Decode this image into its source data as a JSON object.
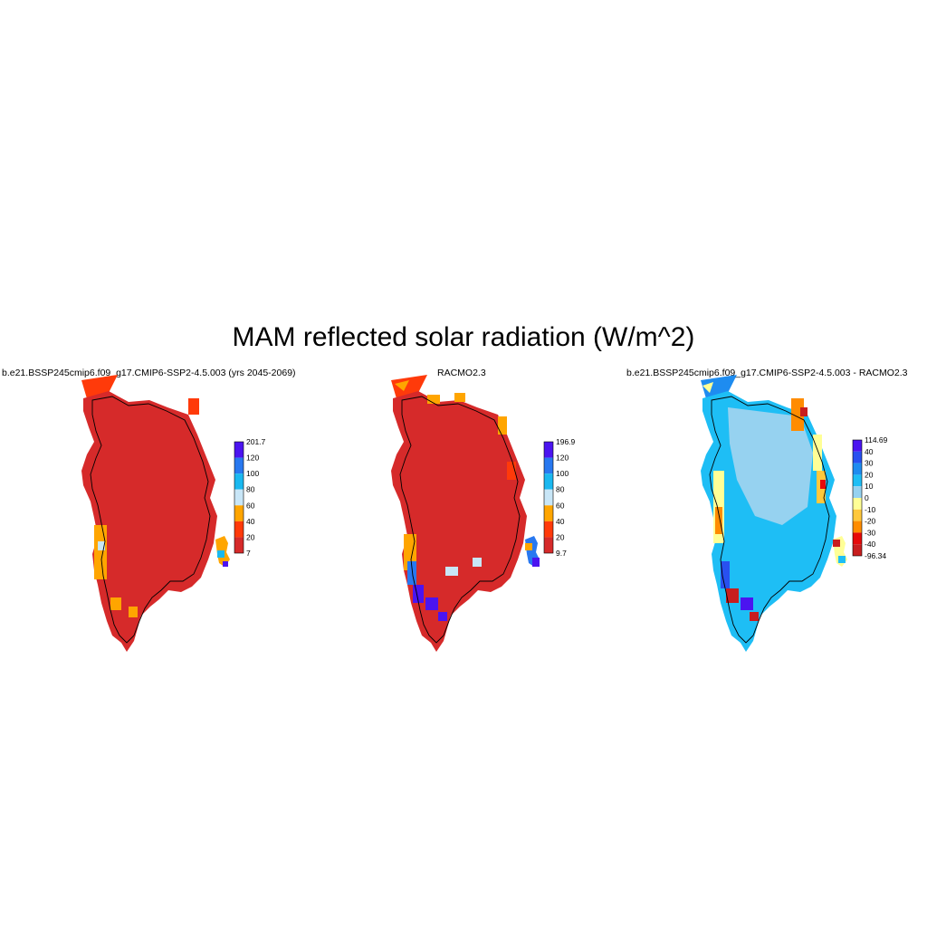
{
  "title": "MAM reflected solar radiation (W/m^2)",
  "panels": [
    {
      "title": "b.e21.BSSP245cmip6.f09_g17.CMIP6-SSP2-4.5.003 (yrs 2045-2069)",
      "colorbar": {
        "labels": [
          "201.7",
          "120",
          "100",
          "80",
          "60",
          "40",
          "20",
          "7"
        ],
        "colors": [
          "#d62a2a",
          "#ff3a0a",
          "#ffa500",
          "#c8e6f7",
          "#1ab8f0",
          "#2878f0",
          "#4b14f0"
        ]
      }
    },
    {
      "title": "RACMO2.3",
      "colorbar": {
        "labels": [
          "196.9",
          "120",
          "100",
          "80",
          "60",
          "40",
          "20",
          "9.7"
        ],
        "colors": [
          "#d62a2a",
          "#ff3a0a",
          "#ffa500",
          "#c8e6f7",
          "#1ab8f0",
          "#2878f0",
          "#4b14f0"
        ]
      }
    },
    {
      "title": "b.e21.BSSP245cmip6.f09_g17.CMIP6-SSP2-4.5.003 - RACMO2.3",
      "colorbar": {
        "labels": [
          "114.69",
          "40",
          "30",
          "20",
          "10",
          "0",
          "-10",
          "-20",
          "-30",
          "-40",
          "-96.34"
        ],
        "colors": [
          "#c81e1e",
          "#e60a0a",
          "#ff8c00",
          "#ffc83c",
          "#ffff96",
          "#96d2f0",
          "#1ebef5",
          "#1e8cf0",
          "#2850f0",
          "#4b14f0"
        ]
      }
    }
  ]
}
